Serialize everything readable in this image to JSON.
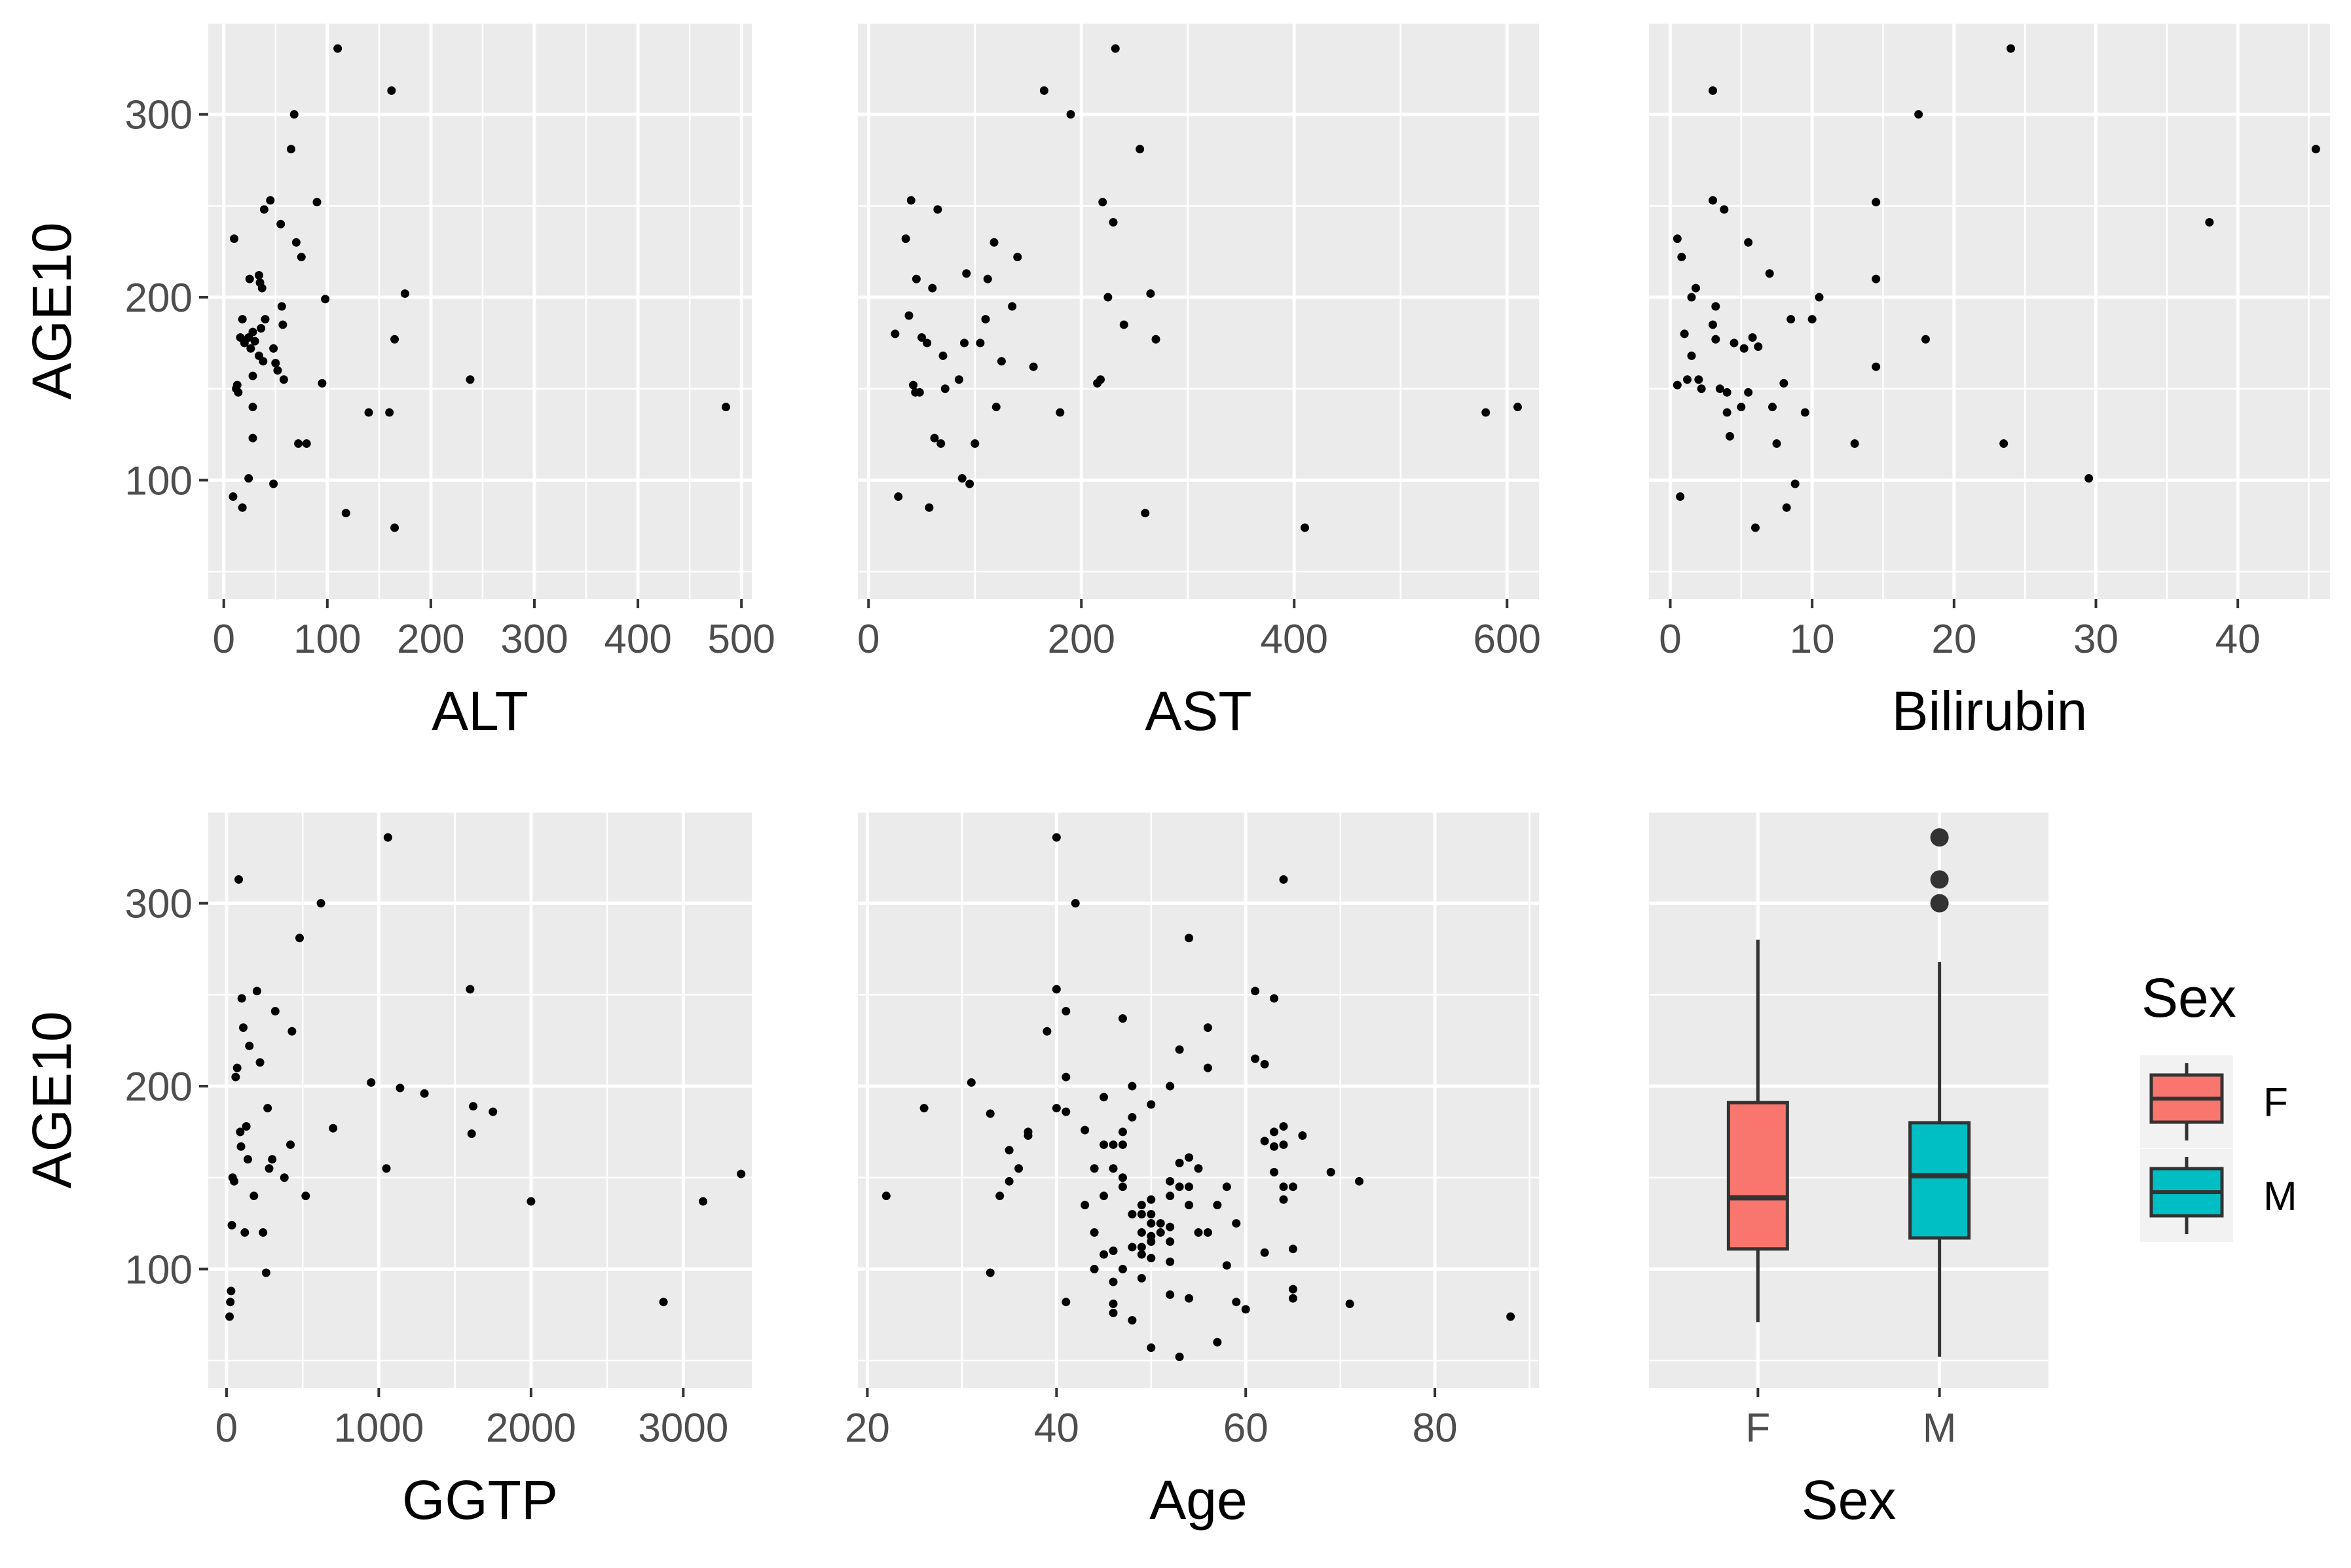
{
  "chart_data": [
    {
      "type": "scatter",
      "xlabel": "ALT",
      "ylabel": "AGE10",
      "xlim": [
        -15,
        510
      ],
      "ylim": [
        35,
        350
      ],
      "xticks": [
        0,
        100,
        200,
        300,
        400,
        500
      ],
      "yticks": [
        100,
        200,
        300
      ],
      "points": [
        [
          10,
          232
        ],
        [
          9,
          91
        ],
        [
          18,
          85
        ],
        [
          24,
          101
        ],
        [
          12,
          150
        ],
        [
          14,
          148
        ],
        [
          13,
          152
        ],
        [
          16,
          178
        ],
        [
          20,
          175
        ],
        [
          18,
          188
        ],
        [
          24,
          178
        ],
        [
          26,
          172
        ],
        [
          28,
          181
        ],
        [
          30,
          176
        ],
        [
          25,
          210
        ],
        [
          28,
          157
        ],
        [
          28,
          140
        ],
        [
          28,
          123
        ],
        [
          34,
          212
        ],
        [
          35,
          208
        ],
        [
          37,
          205
        ],
        [
          34,
          168
        ],
        [
          36,
          183
        ],
        [
          38,
          165
        ],
        [
          40,
          188
        ],
        [
          39,
          248
        ],
        [
          45,
          253
        ],
        [
          48,
          172
        ],
        [
          48,
          98
        ],
        [
          50,
          164
        ],
        [
          52,
          160
        ],
        [
          55,
          240
        ],
        [
          56,
          195
        ],
        [
          57,
          185
        ],
        [
          58,
          155
        ],
        [
          65,
          281
        ],
        [
          68,
          300
        ],
        [
          70,
          230
        ],
        [
          72,
          120
        ],
        [
          75,
          222
        ],
        [
          80,
          120
        ],
        [
          90,
          252
        ],
        [
          95,
          153
        ],
        [
          98,
          199
        ],
        [
          110,
          336
        ],
        [
          118,
          82
        ],
        [
          140,
          137
        ],
        [
          160,
          137
        ],
        [
          162,
          313
        ],
        [
          165,
          74
        ],
        [
          165,
          177
        ],
        [
          175,
          202
        ],
        [
          238,
          155
        ],
        [
          485,
          140
        ]
      ]
    },
    {
      "type": "scatter",
      "xlabel": "AST",
      "ylim": [
        35,
        350
      ],
      "xlim": [
        -10,
        630
      ],
      "xticks": [
        0,
        200,
        400,
        600
      ],
      "points": [
        [
          25,
          180
        ],
        [
          28,
          91
        ],
        [
          35,
          232
        ],
        [
          38,
          190
        ],
        [
          40,
          253
        ],
        [
          42,
          152
        ],
        [
          44,
          148
        ],
        [
          45,
          210
        ],
        [
          48,
          148
        ],
        [
          50,
          178
        ],
        [
          55,
          175
        ],
        [
          57,
          85
        ],
        [
          60,
          205
        ],
        [
          62,
          123
        ],
        [
          65,
          248
        ],
        [
          68,
          120
        ],
        [
          70,
          168
        ],
        [
          72,
          150
        ],
        [
          85,
          155
        ],
        [
          88,
          101
        ],
        [
          90,
          175
        ],
        [
          92,
          213
        ],
        [
          95,
          98
        ],
        [
          100,
          120
        ],
        [
          105,
          175
        ],
        [
          110,
          188
        ],
        [
          112,
          210
        ],
        [
          118,
          230
        ],
        [
          120,
          140
        ],
        [
          125,
          165
        ],
        [
          135,
          195
        ],
        [
          140,
          222
        ],
        [
          155,
          162
        ],
        [
          165,
          313
        ],
        [
          180,
          137
        ],
        [
          190,
          300
        ],
        [
          215,
          153
        ],
        [
          218,
          155
        ],
        [
          220,
          252
        ],
        [
          225,
          200
        ],
        [
          230,
          241
        ],
        [
          232,
          336
        ],
        [
          240,
          185
        ],
        [
          255,
          281
        ],
        [
          260,
          82
        ],
        [
          265,
          202
        ],
        [
          270,
          177
        ],
        [
          410,
          74
        ],
        [
          580,
          137
        ],
        [
          610,
          140
        ]
      ]
    },
    {
      "type": "scatter",
      "xlabel": "Bilirubin",
      "ylim": [
        35,
        350
      ],
      "xlim": [
        -1.5,
        46.5
      ],
      "xticks": [
        0,
        10,
        20,
        30,
        40
      ],
      "points": [
        [
          0.5,
          232
        ],
        [
          0.5,
          152
        ],
        [
          0.7,
          91
        ],
        [
          0.8,
          222
        ],
        [
          1.0,
          180
        ],
        [
          1.2,
          155
        ],
        [
          1.5,
          200
        ],
        [
          1.5,
          168
        ],
        [
          1.8,
          205
        ],
        [
          2.0,
          155
        ],
        [
          2.2,
          150
        ],
        [
          3.0,
          313
        ],
        [
          3.0,
          253
        ],
        [
          3.0,
          185
        ],
        [
          3.2,
          177
        ],
        [
          3.2,
          195
        ],
        [
          3.5,
          150
        ],
        [
          3.8,
          248
        ],
        [
          4.0,
          148
        ],
        [
          4.0,
          137
        ],
        [
          4.2,
          124
        ],
        [
          4.5,
          175
        ],
        [
          5.0,
          140
        ],
        [
          5.2,
          172
        ],
        [
          5.5,
          230
        ],
        [
          5.5,
          148
        ],
        [
          5.8,
          178
        ],
        [
          6.0,
          74
        ],
        [
          6.2,
          173
        ],
        [
          7.0,
          213
        ],
        [
          7.2,
          140
        ],
        [
          7.5,
          120
        ],
        [
          8.0,
          153
        ],
        [
          8.2,
          85
        ],
        [
          8.5,
          188
        ],
        [
          8.8,
          98
        ],
        [
          9.5,
          137
        ],
        [
          10.0,
          188
        ],
        [
          10.5,
          200
        ],
        [
          13.0,
          120
        ],
        [
          14.5,
          252
        ],
        [
          14.5,
          210
        ],
        [
          14.5,
          162
        ],
        [
          17.5,
          300
        ],
        [
          18.0,
          177
        ],
        [
          23.5,
          120
        ],
        [
          24.0,
          336
        ],
        [
          29.5,
          101
        ],
        [
          38.0,
          241
        ],
        [
          45.5,
          281
        ]
      ]
    },
    {
      "type": "scatter",
      "xlabel": "GGTP",
      "ylabel": "AGE10",
      "ylim": [
        35,
        350
      ],
      "xlim": [
        -120,
        3450
      ],
      "xticks": [
        0,
        1000,
        2000,
        3000
      ],
      "points": [
        [
          20,
          74
        ],
        [
          25,
          82
        ],
        [
          30,
          88
        ],
        [
          35,
          124
        ],
        [
          40,
          150
        ],
        [
          50,
          148
        ],
        [
          60,
          205
        ],
        [
          70,
          210
        ],
        [
          80,
          313
        ],
        [
          90,
          175
        ],
        [
          95,
          167
        ],
        [
          100,
          248
        ],
        [
          110,
          232
        ],
        [
          120,
          120
        ],
        [
          130,
          178
        ],
        [
          140,
          160
        ],
        [
          150,
          222
        ],
        [
          180,
          140
        ],
        [
          200,
          252
        ],
        [
          220,
          213
        ],
        [
          240,
          120
        ],
        [
          260,
          98
        ],
        [
          270,
          188
        ],
        [
          280,
          155
        ],
        [
          300,
          160
        ],
        [
          320,
          241
        ],
        [
          380,
          150
        ],
        [
          420,
          168
        ],
        [
          430,
          230
        ],
        [
          480,
          281
        ],
        [
          520,
          140
        ],
        [
          620,
          300
        ],
        [
          700,
          177
        ],
        [
          950,
          202
        ],
        [
          1050,
          155
        ],
        [
          1060,
          336
        ],
        [
          1140,
          199
        ],
        [
          1300,
          196
        ],
        [
          1600,
          253
        ],
        [
          1610,
          174
        ],
        [
          1620,
          189
        ],
        [
          1750,
          186
        ],
        [
          2000,
          137
        ],
        [
          2870,
          82
        ],
        [
          3130,
          137
        ],
        [
          3380,
          152
        ]
      ]
    },
    {
      "type": "scatter",
      "xlabel": "Age",
      "ylim": [
        35,
        350
      ],
      "xlim": [
        19,
        91
      ],
      "xticks": [
        20,
        40,
        60,
        80
      ],
      "points": [
        [
          22,
          140
        ],
        [
          26,
          188
        ],
        [
          31,
          202
        ],
        [
          33,
          185
        ],
        [
          33,
          98
        ],
        [
          34,
          140
        ],
        [
          35,
          165
        ],
        [
          35,
          148
        ],
        [
          36,
          155
        ],
        [
          37,
          175
        ],
        [
          37,
          173
        ],
        [
          39,
          230
        ],
        [
          40,
          336
        ],
        [
          40,
          253
        ],
        [
          40,
          188
        ],
        [
          41,
          241
        ],
        [
          41,
          205
        ],
        [
          41,
          186
        ],
        [
          41,
          82
        ],
        [
          42,
          300
        ],
        [
          43,
          135
        ],
        [
          43,
          176
        ],
        [
          44,
          100
        ],
        [
          44,
          155
        ],
        [
          44,
          120
        ],
        [
          45,
          168
        ],
        [
          45,
          140
        ],
        [
          45,
          194
        ],
        [
          45,
          108
        ],
        [
          46,
          168
        ],
        [
          46,
          93
        ],
        [
          46,
          81
        ],
        [
          46,
          76
        ],
        [
          46,
          155
        ],
        [
          46,
          110
        ],
        [
          47,
          237
        ],
        [
          47,
          175
        ],
        [
          47,
          168
        ],
        [
          47,
          150
        ],
        [
          47,
          145
        ],
        [
          47,
          100
        ],
        [
          48,
          200
        ],
        [
          48,
          183
        ],
        [
          48,
          130
        ],
        [
          48,
          112
        ],
        [
          48,
          72
        ],
        [
          49,
          135
        ],
        [
          49,
          130
        ],
        [
          49,
          120
        ],
        [
          49,
          112
        ],
        [
          49,
          108
        ],
        [
          49,
          95
        ],
        [
          50,
          190
        ],
        [
          50,
          138
        ],
        [
          50,
          130
        ],
        [
          50,
          125
        ],
        [
          50,
          118
        ],
        [
          50,
          115
        ],
        [
          50,
          106
        ],
        [
          50,
          57
        ],
        [
          51,
          125
        ],
        [
          51,
          120
        ],
        [
          52,
          200
        ],
        [
          52,
          148
        ],
        [
          52,
          140
        ],
        [
          52,
          123
        ],
        [
          52,
          115
        ],
        [
          52,
          104
        ],
        [
          52,
          86
        ],
        [
          53,
          220
        ],
        [
          53,
          158
        ],
        [
          53,
          145
        ],
        [
          53,
          52
        ],
        [
          54,
          281
        ],
        [
          54,
          161
        ],
        [
          54,
          145
        ],
        [
          54,
          135
        ],
        [
          54,
          84
        ],
        [
          55,
          155
        ],
        [
          55,
          120
        ],
        [
          56,
          232
        ],
        [
          56,
          210
        ],
        [
          56,
          120
        ],
        [
          57,
          135
        ],
        [
          57,
          60
        ],
        [
          58,
          145
        ],
        [
          58,
          102
        ],
        [
          59,
          125
        ],
        [
          59,
          82
        ],
        [
          60,
          78
        ],
        [
          61,
          252
        ],
        [
          61,
          215
        ],
        [
          62,
          212
        ],
        [
          62,
          170
        ],
        [
          62,
          109
        ],
        [
          63,
          248
        ],
        [
          63,
          175
        ],
        [
          63,
          167
        ],
        [
          63,
          153
        ],
        [
          64,
          313
        ],
        [
          64,
          178
        ],
        [
          64,
          138
        ],
        [
          64,
          145
        ],
        [
          64,
          168
        ],
        [
          65,
          89
        ],
        [
          65,
          84
        ],
        [
          65,
          145
        ],
        [
          65,
          111
        ],
        [
          66,
          173
        ],
        [
          69,
          153
        ],
        [
          71,
          81
        ],
        [
          72,
          148
        ],
        [
          88,
          74
        ]
      ]
    },
    {
      "type": "box",
      "xlabel": "Sex",
      "ylim": [
        35,
        350
      ],
      "categories": [
        "F",
        "M"
      ],
      "boxes": [
        {
          "category": "F",
          "fill": "#F8766D",
          "min": 71,
          "q1": 111,
          "median": 139,
          "q3": 191,
          "max": 280,
          "outliers": []
        },
        {
          "category": "M",
          "fill": "#00BFC4",
          "min": 52,
          "q1": 117,
          "median": 151,
          "q3": 180,
          "max": 268,
          "outliers": [
            300,
            313,
            336
          ]
        }
      ],
      "legend": {
        "title": "Sex",
        "placement": "right",
        "entries": [
          {
            "label": "F",
            "color": "#F8766D"
          },
          {
            "label": "M",
            "color": "#00BFC4"
          }
        ]
      }
    }
  ],
  "colors": {
    "panel_background": "#EBEBEB",
    "grid": "#FFFFFF",
    "point": "#000000",
    "outlier": "#333333",
    "box_line": "#333333",
    "tick_label": "#4D4D4D"
  }
}
